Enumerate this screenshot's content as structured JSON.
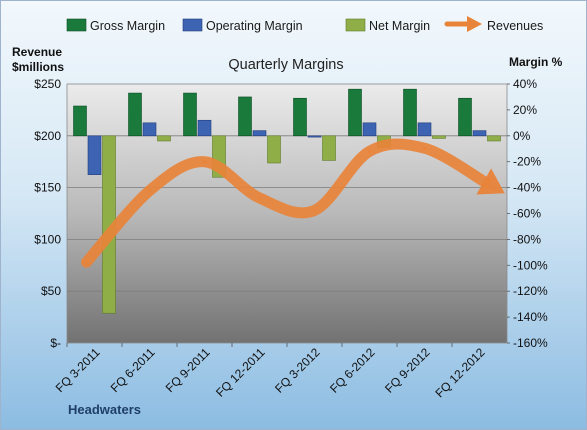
{
  "chart_data": {
    "type": "bar",
    "title": "Quarterly Margins",
    "categories": [
      "FQ 3-2011",
      "FQ 6-2011",
      "FQ 9-2011",
      "FQ 12-2011",
      "FQ 3-2012",
      "FQ 6-2012",
      "FQ 9-2012",
      "FQ 12-2012"
    ],
    "series": [
      {
        "name": "Gross Margin",
        "color": "#1a7a3c",
        "values": [
          23,
          33,
          33,
          30,
          29,
          36,
          36,
          29
        ]
      },
      {
        "name": "Operating Margin",
        "color": "#3d63b3",
        "values": [
          -30,
          10,
          12,
          4,
          -1,
          10,
          10,
          4
        ]
      },
      {
        "name": "Net Margin",
        "color": "#8fae48",
        "values": [
          -137,
          -4,
          -32,
          -21,
          -19,
          -9,
          -2,
          -4
        ]
      },
      {
        "name": "Revenues",
        "color": "#e8833a",
        "trend_arrow": true,
        "values": [
          78,
          147,
          175,
          140,
          128,
          185,
          188,
          155
        ]
      }
    ],
    "y_left": {
      "title_line1": "Revenue",
      "title_line2": "$millions",
      "ticks": [
        "$250",
        "$200",
        "$150",
        "$100",
        "$50",
        "$-"
      ],
      "ylim": [
        0,
        250
      ]
    },
    "y_right": {
      "title": "Margin %",
      "ticks": [
        "40%",
        "20%",
        "0%",
        "-20%",
        "-40%",
        "-60%",
        "-80%",
        "-100%",
        "-120%",
        "-140%",
        "-160%"
      ],
      "ylim": [
        -160,
        40
      ]
    },
    "grid": true,
    "legend_position": "top",
    "source": "Headwaters"
  }
}
